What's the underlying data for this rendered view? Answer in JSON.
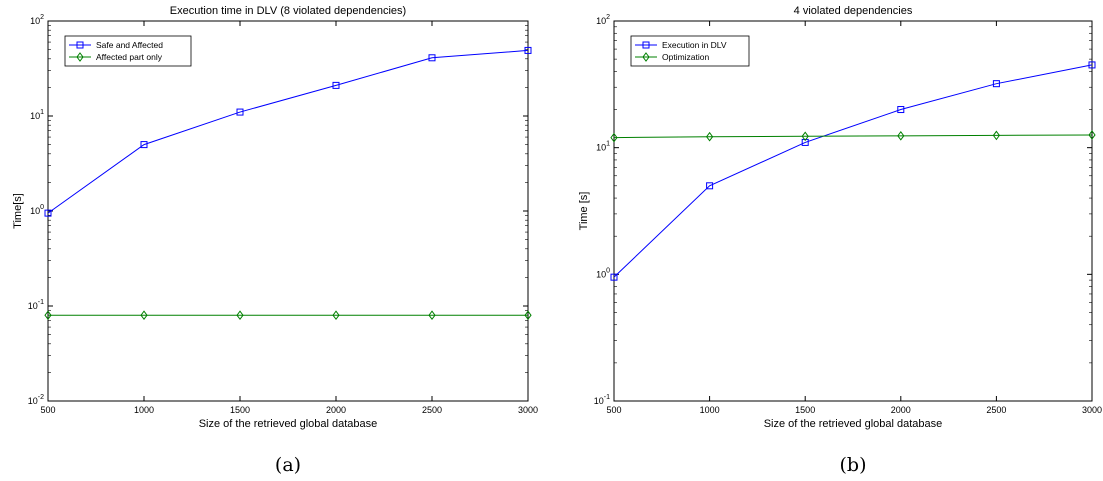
{
  "chart_data": [
    {
      "type": "line",
      "title": "Execution time in DLV (8 violated dependencies)",
      "xlabel": "Size of the retrieved global database",
      "ylabel": "Time[s]",
      "x": [
        500,
        1000,
        1500,
        2000,
        2500,
        3000
      ],
      "xticks": [
        "500",
        "1000",
        "1500",
        "2000",
        "2500",
        "3000"
      ],
      "xlim": [
        500,
        3000
      ],
      "ylim": [
        0.01,
        100
      ],
      "yscale": "log",
      "yticks": [
        {
          "base": "10",
          "exp": "-2"
        },
        {
          "base": "10",
          "exp": "-1"
        },
        {
          "base": "10",
          "exp": "0"
        },
        {
          "base": "10",
          "exp": "1"
        },
        {
          "base": "10",
          "exp": "2"
        }
      ],
      "legend_position": "top-left",
      "series": [
        {
          "name": "Safe and Affected",
          "marker": "square",
          "color": "#0000ff",
          "values": [
            0.95,
            5,
            11,
            21,
            41,
            49
          ]
        },
        {
          "name": "Affected part only",
          "marker": "diamond",
          "color": "#008000",
          "values": [
            0.08,
            0.08,
            0.08,
            0.08,
            0.08,
            0.08
          ]
        }
      ],
      "caption": "(a)"
    },
    {
      "type": "line",
      "title": "4 violated dependencies",
      "xlabel": "Size of the retrieved global database",
      "ylabel": "Time [s]",
      "x": [
        500,
        1000,
        1500,
        2000,
        2500,
        3000
      ],
      "xticks": [
        "500",
        "1000",
        "1500",
        "2000",
        "2500",
        "3000"
      ],
      "xlim": [
        500,
        3000
      ],
      "ylim": [
        0.1,
        100
      ],
      "yscale": "log",
      "yticks": [
        {
          "base": "10",
          "exp": "-1"
        },
        {
          "base": "10",
          "exp": "0"
        },
        {
          "base": "10",
          "exp": "1"
        },
        {
          "base": "10",
          "exp": "2"
        }
      ],
      "legend_position": "top-left",
      "series": [
        {
          "name": "Execution in DLV",
          "marker": "square",
          "color": "#0000ff",
          "values": [
            0.95,
            5,
            11,
            20,
            32,
            45
          ]
        },
        {
          "name": "Optimization",
          "marker": "diamond",
          "color": "#008000",
          "values": [
            12,
            12.2,
            12.3,
            12.4,
            12.5,
            12.6
          ]
        }
      ],
      "caption": "(b)"
    }
  ]
}
